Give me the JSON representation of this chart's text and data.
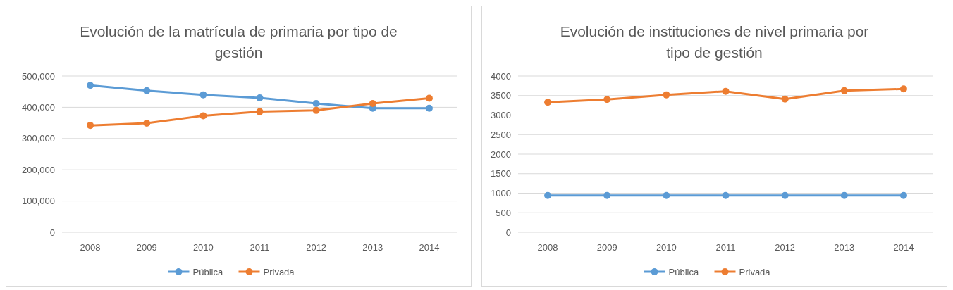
{
  "chart_data": [
    {
      "type": "line",
      "title": "Evolución de la matrícula de primaria por tipo de gestión",
      "categories": [
        "2008",
        "2009",
        "2010",
        "2011",
        "2012",
        "2013",
        "2014"
      ],
      "ylim": [
        0,
        500000
      ],
      "yticks": [
        {
          "value": 0,
          "label": "0"
        },
        {
          "value": 100000,
          "label": "100,000"
        },
        {
          "value": 200000,
          "label": "200,000"
        },
        {
          "value": 300000,
          "label": "300,000"
        },
        {
          "value": 400000,
          "label": "400,000"
        },
        {
          "value": 500000,
          "label": "500,000"
        }
      ],
      "grid": "y",
      "legend": "bottom",
      "marker": "circle",
      "series": [
        {
          "name": "Pública",
          "color": "#5b9bd5",
          "values": [
            470000,
            453000,
            440000,
            430000,
            412000,
            397000,
            397000
          ]
        },
        {
          "name": "Privada",
          "color": "#ed7d31",
          "values": [
            342000,
            349000,
            373000,
            386000,
            390000,
            412000,
            429000
          ]
        }
      ]
    },
    {
      "type": "line",
      "title": "Evolución de instituciones de nivel primaria por tipo de gestión",
      "categories": [
        "2008",
        "2009",
        "2010",
        "2011",
        "2012",
        "2013",
        "2014"
      ],
      "ylim": [
        0,
        4000
      ],
      "yticks": [
        0,
        500,
        1000,
        1500,
        2000,
        2500,
        3000,
        3500,
        4000
      ],
      "grid": "y",
      "legend": "bottom",
      "marker": "circle",
      "series": [
        {
          "name": "Pública",
          "color": "#5b9bd5",
          "values": [
            940,
            940,
            940,
            940,
            940,
            940,
            940
          ]
        },
        {
          "name": "Privada",
          "color": "#ed7d31",
          "values": [
            3330,
            3400,
            3520,
            3610,
            3410,
            3625,
            3670
          ]
        }
      ]
    }
  ]
}
